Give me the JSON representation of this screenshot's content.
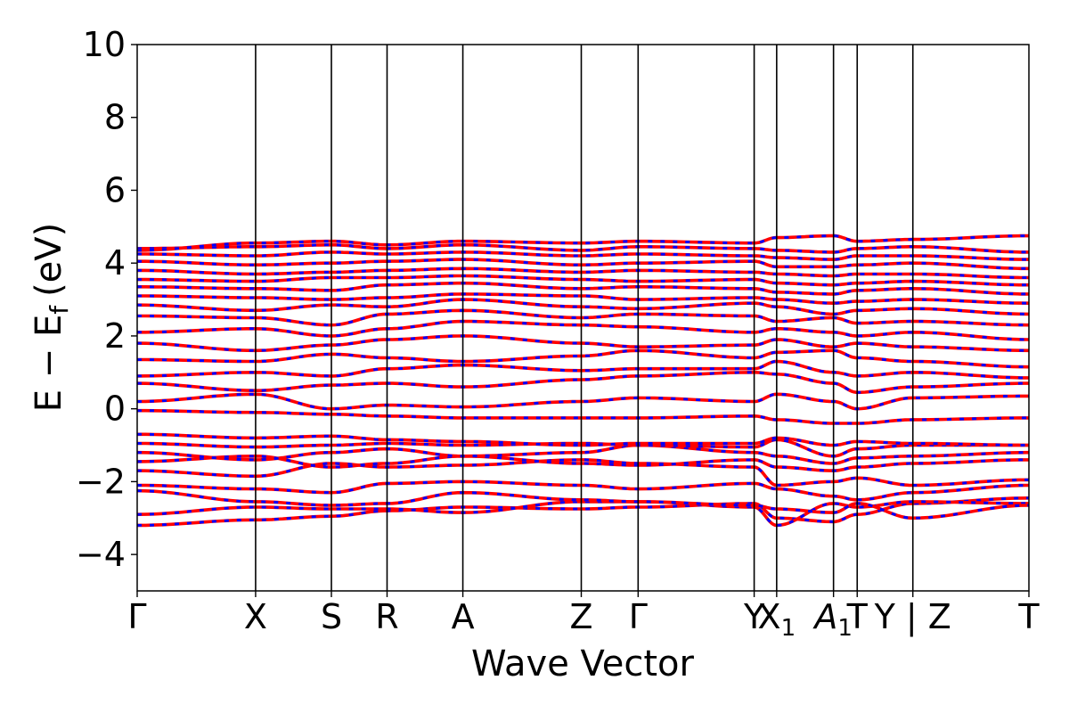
{
  "chart_data": {
    "type": "line",
    "title": "",
    "xlabel": "Wave Vector",
    "ylabel": "E − E_f (eV)",
    "ylabel_parts": {
      "main": "E − E",
      "sub": "f",
      "unit": "(eV)"
    },
    "ylim": [
      -5,
      10
    ],
    "yticks": [
      -4,
      -2,
      0,
      2,
      4,
      6,
      8,
      10
    ],
    "ytick_labels": [
      "−4",
      "−2",
      "0",
      "2",
      "4",
      "6",
      "8",
      "10"
    ],
    "grid": false,
    "kpath": [
      {
        "label": "Γ",
        "pos": 0.0
      },
      {
        "label": "X",
        "pos": 1.0
      },
      {
        "label": "S",
        "pos": 1.64
      },
      {
        "label": "R",
        "pos": 2.11
      },
      {
        "label": "A",
        "pos": 2.75
      },
      {
        "label": "Z",
        "pos": 3.75
      },
      {
        "label": "Γ",
        "pos": 4.23
      },
      {
        "label": "Y",
        "pos": 5.21
      },
      {
        "label": "X",
        "sub": "1",
        "pos": 5.4
      },
      {
        "label": "A",
        "sub": "1",
        "pos": 5.88,
        "italic": true
      },
      {
        "label": "T",
        "pos": 6.08
      },
      {
        "label": "Y | Z",
        "pos": 6.55
      },
      {
        "label": "T",
        "pos": 7.53
      }
    ],
    "series_styles": [
      {
        "name": "",
        "color": "#ff0000",
        "style": "solid"
      },
      {
        "name": "",
        "color": "#0000ff",
        "style": "dashed"
      }
    ],
    "bands": [
      [
        -3.2,
        -3.05,
        -2.95,
        -2.8,
        -2.7,
        -2.75,
        -2.7,
        -2.6,
        -3.0,
        -3.1,
        -2.9,
        -2.6,
        -2.45,
        -2.6
      ],
      [
        -2.9,
        -2.7,
        -2.75,
        -2.75,
        -2.85,
        -2.55,
        -2.55,
        -2.7,
        -3.2,
        -2.6,
        -2.7,
        -2.55,
        -2.6,
        -2.65
      ],
      [
        -2.25,
        -2.55,
        -2.65,
        -2.6,
        -2.3,
        -2.5,
        -2.55,
        -2.65,
        -2.75,
        -2.85,
        -2.6,
        -3.0,
        -2.65,
        -2.6
      ],
      [
        -2.1,
        -2.2,
        -2.3,
        -2.05,
        -2.0,
        -2.1,
        -2.2,
        -2.05,
        -2.2,
        -2.4,
        -2.5,
        -2.3,
        -2.1,
        -2.0
      ],
      [
        -1.7,
        -1.85,
        -1.5,
        -1.6,
        -1.55,
        -1.4,
        -1.5,
        -1.6,
        -2.1,
        -2.0,
        -1.9,
        -2.1,
        -1.95,
        -1.95
      ],
      [
        -1.45,
        -1.3,
        -1.6,
        -1.5,
        -1.3,
        -1.5,
        -1.55,
        -1.4,
        -1.6,
        -1.7,
        -1.6,
        -1.5,
        -1.4,
        -1.5
      ],
      [
        -1.2,
        -1.4,
        -1.2,
        -1.1,
        -1.3,
        -1.2,
        -1.0,
        -1.2,
        -1.3,
        -1.5,
        -1.35,
        -1.3,
        -1.2,
        -1.25
      ],
      [
        -0.95,
        -1.05,
        -1.0,
        -0.95,
        -1.0,
        -0.95,
        -1.0,
        -1.05,
        -0.85,
        -1.3,
        -1.1,
        -1.0,
        -1.0,
        -0.9
      ],
      [
        -0.7,
        -0.8,
        -0.75,
        -0.85,
        -0.9,
        -1.0,
        -0.95,
        -0.95,
        -0.8,
        -1.0,
        -0.9,
        -0.95,
        -1.0,
        -1.05
      ],
      [
        -0.05,
        -0.1,
        -0.15,
        -0.2,
        -0.25,
        -0.25,
        -0.25,
        -0.2,
        -0.3,
        -0.4,
        -0.4,
        -0.3,
        -0.25,
        -0.3
      ],
      [
        0.2,
        0.4,
        0.0,
        0.1,
        0.05,
        0.2,
        0.3,
        0.2,
        0.4,
        0.2,
        0.0,
        0.3,
        0.35,
        0.4
      ],
      [
        0.7,
        0.5,
        0.65,
        0.7,
        0.6,
        0.8,
        0.9,
        1.0,
        0.95,
        0.7,
        0.45,
        0.6,
        0.7,
        0.6
      ],
      [
        0.9,
        1.0,
        0.9,
        1.1,
        1.2,
        1.05,
        1.1,
        1.1,
        1.3,
        1.0,
        0.9,
        1.0,
        0.85,
        0.8
      ],
      [
        1.35,
        1.3,
        1.5,
        1.4,
        1.3,
        1.45,
        1.6,
        1.4,
        1.55,
        1.6,
        1.4,
        1.3,
        1.15,
        1.1
      ],
      [
        1.8,
        1.6,
        1.75,
        1.9,
        2.0,
        1.8,
        1.7,
        1.75,
        1.9,
        1.7,
        1.8,
        1.7,
        1.6,
        1.5
      ],
      [
        2.1,
        2.2,
        2.0,
        2.2,
        2.4,
        2.3,
        2.25,
        2.1,
        2.2,
        2.1,
        2.0,
        2.1,
        1.9,
        1.7
      ],
      [
        2.55,
        2.5,
        2.3,
        2.6,
        2.7,
        2.5,
        2.6,
        2.55,
        2.4,
        2.5,
        2.35,
        2.4,
        2.3,
        2.1
      ],
      [
        2.85,
        2.7,
        2.85,
        2.8,
        3.0,
        2.8,
        2.75,
        2.9,
        2.8,
        2.6,
        2.7,
        2.75,
        2.6,
        2.5
      ],
      [
        3.1,
        3.05,
        3.0,
        3.05,
        3.15,
        3.1,
        3.0,
        3.05,
        3.0,
        2.9,
        2.95,
        3.0,
        2.9,
        2.8
      ],
      [
        3.35,
        3.3,
        3.25,
        3.4,
        3.45,
        3.3,
        3.35,
        3.3,
        3.2,
        3.15,
        3.25,
        3.3,
        3.15,
        3.05
      ],
      [
        3.55,
        3.5,
        3.6,
        3.6,
        3.65,
        3.55,
        3.5,
        3.55,
        3.45,
        3.4,
        3.45,
        3.5,
        3.4,
        3.3
      ],
      [
        3.8,
        3.7,
        3.75,
        3.8,
        3.85,
        3.75,
        3.8,
        3.75,
        3.7,
        3.65,
        3.7,
        3.7,
        3.6,
        3.55
      ],
      [
        4.05,
        3.95,
        4.0,
        4.05,
        4.1,
        3.95,
        4.0,
        4.05,
        3.9,
        3.9,
        3.95,
        4.0,
        3.85,
        3.8
      ],
      [
        4.25,
        4.2,
        4.3,
        4.25,
        4.3,
        4.2,
        4.25,
        4.2,
        4.15,
        4.1,
        4.2,
        4.2,
        4.1,
        4.05
      ],
      [
        4.4,
        4.45,
        4.5,
        4.4,
        4.5,
        4.35,
        4.45,
        4.4,
        4.35,
        4.3,
        4.4,
        4.45,
        4.3,
        4.2
      ],
      [
        4.35,
        4.55,
        4.6,
        4.5,
        4.6,
        4.55,
        4.6,
        4.55,
        4.7,
        4.75,
        4.6,
        4.65,
        4.75,
        4.8
      ]
    ]
  }
}
